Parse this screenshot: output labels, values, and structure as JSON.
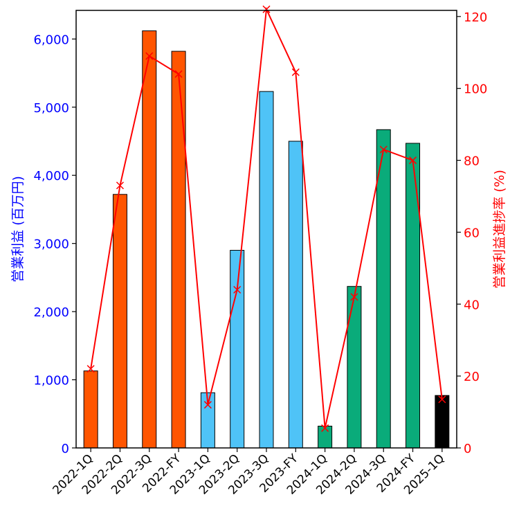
{
  "chart_data": {
    "type": "bar",
    "categories": [
      "2022-1Q",
      "2022-2Q",
      "2022-3Q",
      "2022-FY",
      "2023-1Q",
      "2023-2Q",
      "2023-3Q",
      "2023-FY",
      "2024-1Q",
      "2024-2Q",
      "2024-3Q",
      "2024-FY",
      "2025-1Q"
    ],
    "bar_series": {
      "values": [
        1130,
        3720,
        6120,
        5820,
        810,
        2900,
        5230,
        4500,
        320,
        2370,
        4670,
        4470,
        770
      ],
      "colors": [
        "#ff5500",
        "#ff5500",
        "#ff5500",
        "#ff5500",
        "#4fc3f7",
        "#4fc3f7",
        "#4fc3f7",
        "#4fc3f7",
        "#0aab7a",
        "#0aab7a",
        "#0aab7a",
        "#0aab7a",
        "#000000"
      ]
    },
    "line_series": {
      "values": [
        22,
        73,
        109,
        104,
        12,
        44,
        122,
        104.5,
        5.5,
        42,
        83,
        80,
        13.5
      ],
      "color": "#ff0000"
    },
    "y_left": {
      "label": "営業利益 (百万円)",
      "range": [
        0,
        6420
      ],
      "ticks": [
        0,
        1000,
        2000,
        3000,
        4000,
        5000,
        6000
      ],
      "tick_labels": [
        "0",
        "1,000",
        "2,000",
        "3,000",
        "4,000",
        "5,000",
        "6,000"
      ],
      "color": "#0000ff"
    },
    "y_right": {
      "label": "営業利益進捗率 (%)",
      "range": [
        0,
        121.7
      ],
      "ticks": [
        0,
        20,
        40,
        60,
        80,
        100,
        120
      ],
      "tick_labels": [
        "0",
        "20",
        "40",
        "60",
        "80",
        "100",
        "120"
      ],
      "color": "#ff0000"
    },
    "grid": false,
    "title": ""
  }
}
